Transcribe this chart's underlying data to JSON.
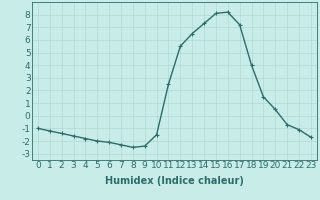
{
  "x": [
    0,
    1,
    2,
    3,
    4,
    5,
    6,
    7,
    8,
    9,
    10,
    11,
    12,
    13,
    14,
    15,
    16,
    17,
    18,
    19,
    20,
    21,
    22,
    23
  ],
  "y": [
    -1,
    -1.2,
    -1.4,
    -1.6,
    -1.8,
    -2.0,
    -2.1,
    -2.3,
    -2.5,
    -2.4,
    -1.5,
    2.5,
    5.5,
    6.5,
    7.3,
    8.1,
    8.2,
    7.2,
    4.0,
    1.5,
    0.5,
    -0.7,
    -1.1,
    -1.7
  ],
  "line_color": "#2e6b6b",
  "marker": "+",
  "bg_color": "#c8ede8",
  "grid_color": "#b0d8d2",
  "xlabel": "Humidex (Indice chaleur)",
  "xlim": [
    -0.5,
    23.5
  ],
  "ylim": [
    -3.5,
    9.0
  ],
  "yticks": [
    -3,
    -2,
    -1,
    0,
    1,
    2,
    3,
    4,
    5,
    6,
    7,
    8
  ],
  "xticks": [
    0,
    1,
    2,
    3,
    4,
    5,
    6,
    7,
    8,
    9,
    10,
    11,
    12,
    13,
    14,
    15,
    16,
    17,
    18,
    19,
    20,
    21,
    22,
    23
  ],
  "label_fontsize": 7,
  "tick_fontsize": 6.5
}
